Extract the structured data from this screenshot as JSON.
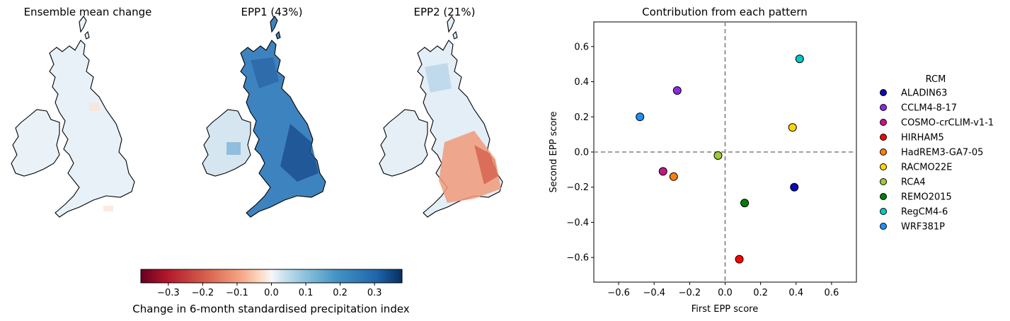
{
  "maps": [
    {
      "title": "Ensemble mean change"
    },
    {
      "title": "EPP1 (43%)"
    },
    {
      "title": "EPP2 (21%)"
    }
  ],
  "colorbar": {
    "label": "Change in 6-month standardised precipitation index",
    "ticks": [
      "−0.3",
      "−0.2",
      "−0.1",
      "0.0",
      "0.1",
      "0.2",
      "0.3"
    ],
    "range": [
      -0.38,
      0.38
    ],
    "colormap": "RdBu"
  },
  "chart_data": {
    "type": "scatter",
    "title": "Contribution from each pattern",
    "xlabel": "First EPP score",
    "ylabel": "Second EPP score",
    "xlim": [
      -0.74,
      0.74
    ],
    "ylim": [
      -0.74,
      0.74
    ],
    "xticks": [
      "−0.6",
      "−0.4",
      "−0.2",
      "0.0",
      "0.2",
      "0.4",
      "0.6"
    ],
    "yticks": [
      "−0.6",
      "−0.4",
      "−0.2",
      "0.0",
      "0.2",
      "0.4",
      "0.6"
    ],
    "reference_lines": {
      "x": 0,
      "y": 0,
      "style": "dashed"
    },
    "legend_title": "RCM",
    "legend_position": "right-outside",
    "series": [
      {
        "name": "ALADIN63",
        "x": 0.39,
        "y": -0.2,
        "color": "#0a0ab4"
      },
      {
        "name": "CCLM4-8-17",
        "x": -0.27,
        "y": 0.35,
        "color": "#8a2be2"
      },
      {
        "name": "COSMO-crCLIM-v1-1",
        "x": -0.35,
        "y": -0.11,
        "color": "#c71585"
      },
      {
        "name": "HIRHAM5",
        "x": 0.08,
        "y": -0.61,
        "color": "#ff0000"
      },
      {
        "name": "HadREM3-GA7-05",
        "x": -0.29,
        "y": -0.14,
        "color": "#ff7f0e"
      },
      {
        "name": "RACMO22E",
        "x": 0.38,
        "y": 0.14,
        "color": "#ffd700"
      },
      {
        "name": "RCA4",
        "x": -0.04,
        "y": -0.02,
        "color": "#9acd32"
      },
      {
        "name": "REMO2015",
        "x": 0.11,
        "y": -0.29,
        "color": "#008000"
      },
      {
        "name": "RegCM4-6",
        "x": 0.42,
        "y": 0.53,
        "color": "#00c8c8"
      },
      {
        "name": "WRF381P",
        "x": -0.48,
        "y": 0.2,
        "color": "#1e90ff"
      }
    ]
  }
}
